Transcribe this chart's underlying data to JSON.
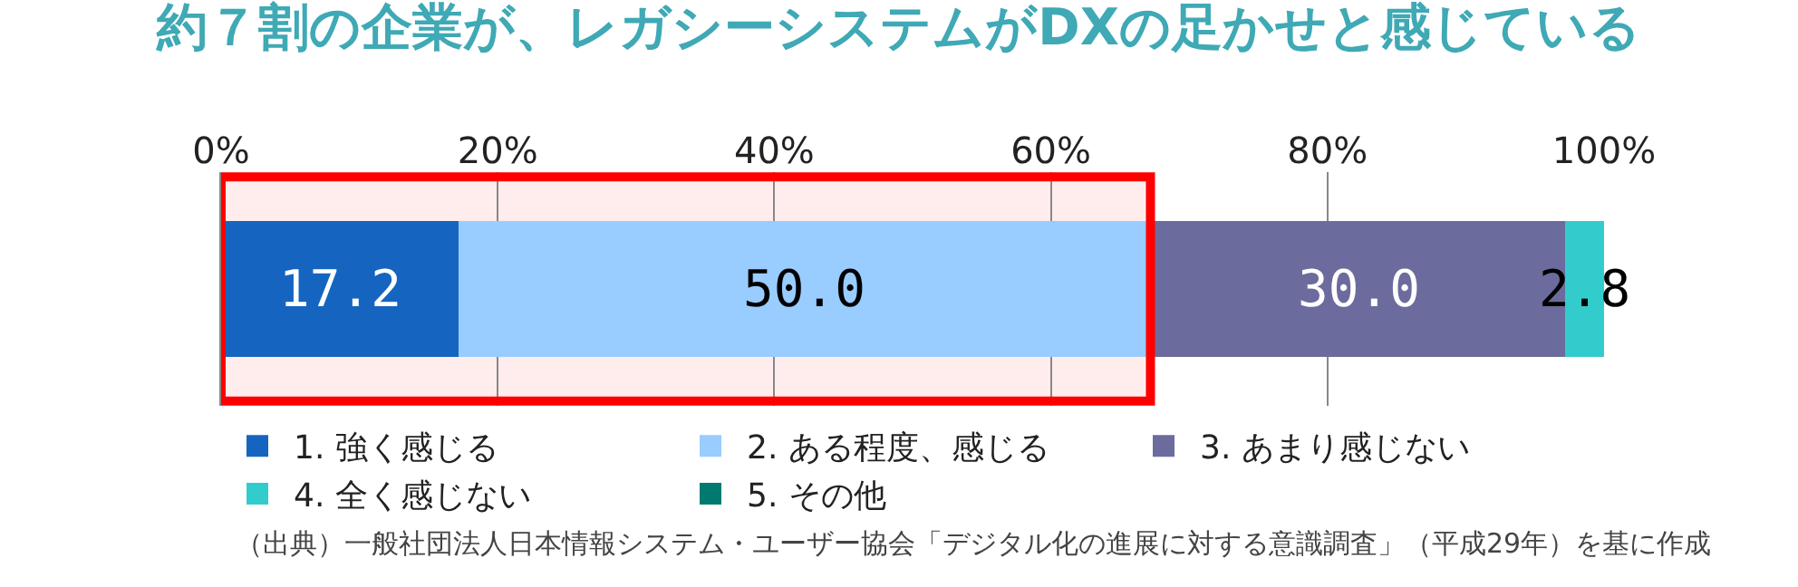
{
  "chart_data": {
    "type": "bar",
    "orientation": "horizontal",
    "stacked": true,
    "title": "約７割の企業が、レガシーシステムがDXの足かせと感じている",
    "categories": [
      null
    ],
    "series": [
      {
        "name": "1. 強く感じる",
        "color": "#1565c0",
        "values": [
          17.2
        ],
        "value_labels": [
          "17.2"
        ]
      },
      {
        "name": "2. ある程度、感じる",
        "color": "#99ccff",
        "values": [
          50.0
        ],
        "value_labels": [
          "50.0"
        ]
      },
      {
        "name": "3. あまり感じない",
        "color": "#6b6b9e",
        "values": [
          30.0
        ],
        "value_labels": [
          "30.0"
        ]
      },
      {
        "name": "4. 全く感じない",
        "color": "#33cccc",
        "values": [
          2.8
        ],
        "value_labels": [
          "2.8"
        ]
      },
      {
        "name": "5. その他",
        "color": "#007a70",
        "values": [
          0
        ],
        "value_labels": [
          null
        ]
      }
    ],
    "xlim": [
      0,
      100
    ],
    "xticks": [
      {
        "value": 0,
        "label": "0%"
      },
      {
        "value": 20,
        "label": "20%"
      },
      {
        "value": 40,
        "label": "40%"
      },
      {
        "value": 60,
        "label": "60%"
      },
      {
        "value": 80,
        "label": "80%"
      },
      {
        "value": 100,
        "label": "100%"
      }
    ],
    "grid": "x",
    "legend": "bottom",
    "bands": [
      {
        "axis": "x",
        "from": 0,
        "to": 67.2,
        "color": "#ff0000"
      }
    ],
    "annotations": [
      "（出典）一般社団法人日本情報システム・ユーザー協会「デジタル化の進展に対する意識調査」（平成29年）を基に作成"
    ]
  }
}
